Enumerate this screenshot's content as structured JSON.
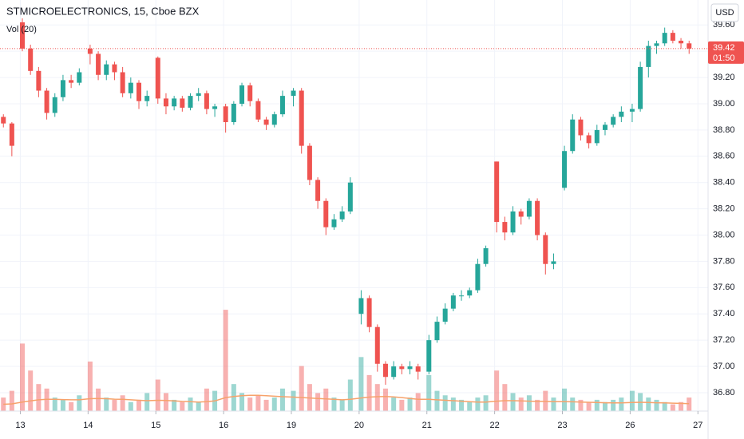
{
  "chart_data": {
    "type": "candlestick",
    "title": "STMICROELECTRONICS, 15, Cboe BZX",
    "indicator": "Vol (20)",
    "currency": "USD",
    "last_price": 39.42,
    "countdown": "01:50",
    "up_color": "#26a69a",
    "down_color": "#ef5350",
    "ma_color": "#f7a26b",
    "grid": true,
    "xlim": [
      -0.3,
      10.15
    ],
    "ylim": [
      36.66,
      39.79
    ],
    "volume_lim": [
      0,
      50000
    ],
    "yticks": [
      {
        "value": 36.8,
        "label": "36.80"
      },
      {
        "value": 37.0,
        "label": "37.00"
      },
      {
        "value": 37.2,
        "label": "37.20"
      },
      {
        "value": 37.4,
        "label": "37.40"
      },
      {
        "value": 37.6,
        "label": "37.60"
      },
      {
        "value": 37.8,
        "label": "37.80"
      },
      {
        "value": 38.0,
        "label": "38.00"
      },
      {
        "value": 38.2,
        "label": "38.20"
      },
      {
        "value": 38.4,
        "label": "38.40"
      },
      {
        "value": 38.6,
        "label": "38.60"
      },
      {
        "value": 38.8,
        "label": "38.80"
      },
      {
        "value": 39.0,
        "label": "39.00"
      },
      {
        "value": 39.2,
        "label": "39.20"
      },
      {
        "value": 39.4,
        "label": "39.40"
      },
      {
        "value": 39.6,
        "label": "39.60"
      }
    ],
    "xticks": [
      {
        "value": 0,
        "label": "13"
      },
      {
        "value": 1,
        "label": "14"
      },
      {
        "value": 2,
        "label": "15"
      },
      {
        "value": 3,
        "label": "16"
      },
      {
        "value": 4,
        "label": "19"
      },
      {
        "value": 5,
        "label": "20"
      },
      {
        "value": 6,
        "label": "21"
      },
      {
        "value": 7,
        "label": "22"
      },
      {
        "value": 8,
        "label": "23"
      },
      {
        "value": 9,
        "label": "26"
      },
      {
        "value": 10,
        "label": "27"
      }
    ],
    "x": [
      -0.25,
      -0.125,
      0.03,
      0.15,
      0.27,
      0.39,
      0.51,
      0.63,
      0.75,
      0.87,
      1.03,
      1.15,
      1.27,
      1.39,
      1.51,
      1.63,
      1.75,
      1.87,
      2.03,
      2.15,
      2.27,
      2.39,
      2.51,
      2.63,
      2.75,
      2.87,
      3.03,
      3.15,
      3.27,
      3.39,
      3.51,
      3.63,
      3.75,
      3.87,
      4.03,
      4.15,
      4.27,
      4.39,
      4.51,
      4.63,
      4.75,
      4.87,
      5.03,
      5.15,
      5.27,
      5.39,
      5.51,
      5.63,
      5.75,
      5.87,
      6.03,
      6.15,
      6.27,
      6.39,
      6.51,
      6.63,
      6.75,
      6.87,
      7.03,
      7.15,
      7.27,
      7.39,
      7.51,
      7.63,
      7.75,
      7.87,
      8.03,
      8.15,
      8.27,
      8.39,
      8.51,
      8.63,
      8.75,
      8.87,
      9.03,
      9.15,
      9.27,
      9.39,
      9.51,
      9.63,
      9.75,
      9.87
    ],
    "open": [
      38.9,
      38.85,
      39.62,
      39.42,
      39.25,
      39.1,
      38.93,
      39.05,
      39.18,
      39.16,
      39.42,
      39.38,
      39.22,
      39.3,
      39.24,
      39.08,
      39.16,
      39.02,
      39.35,
      39.04,
      38.98,
      39.04,
      38.97,
      39.06,
      39.08,
      38.96,
      38.98,
      38.86,
      39.0,
      39.14,
      39.02,
      38.88,
      38.84,
      38.92,
      39.06,
      39.1,
      38.68,
      38.42,
      38.26,
      38.06,
      38.12,
      38.18,
      37.4,
      37.52,
      37.3,
      37.02,
      36.92,
      37.0,
      36.98,
      37.0,
      36.96,
      37.2,
      37.34,
      37.44,
      37.54,
      37.54,
      37.58,
      37.78,
      38.56,
      38.1,
      38.02,
      38.18,
      38.14,
      38.26,
      38.0,
      37.78,
      38.36,
      38.64,
      38.88,
      38.76,
      38.7,
      38.8,
      38.84,
      38.9,
      38.94,
      38.96,
      39.28,
      39.44,
      39.46,
      39.54,
      39.48,
      39.46
    ],
    "high": [
      38.92,
      38.86,
      39.65,
      39.45,
      39.28,
      39.12,
      39.08,
      39.22,
      39.22,
      39.27,
      39.45,
      39.4,
      39.33,
      39.32,
      39.28,
      39.2,
      39.18,
      39.1,
      39.36,
      39.08,
      39.06,
      39.06,
      39.08,
      39.12,
      39.1,
      39.0,
      39.0,
      39.02,
      39.16,
      39.16,
      39.04,
      38.9,
      38.94,
      39.1,
      39.12,
      39.12,
      38.7,
      38.44,
      38.28,
      38.16,
      38.22,
      38.44,
      37.58,
      37.54,
      37.32,
      37.04,
      37.04,
      37.02,
      37.04,
      37.02,
      37.24,
      37.38,
      37.48,
      37.56,
      37.58,
      37.6,
      37.82,
      37.92,
      38.56,
      38.14,
      38.22,
      38.2,
      38.28,
      38.28,
      38.02,
      37.86,
      38.68,
      38.92,
      38.9,
      38.78,
      38.84,
      38.86,
      38.92,
      38.98,
      39.0,
      39.32,
      39.48,
      39.48,
      39.58,
      39.56,
      39.5,
      39.48
    ],
    "low": [
      38.82,
      38.6,
      39.4,
      39.22,
      39.05,
      38.88,
      38.9,
      39.02,
      39.12,
      39.14,
      39.3,
      39.18,
      39.18,
      39.18,
      39.05,
      39.04,
      38.96,
      38.98,
      39.0,
      38.92,
      38.95,
      38.94,
      38.95,
      39.02,
      38.92,
      38.9,
      38.78,
      38.84,
      38.98,
      38.98,
      38.86,
      38.8,
      38.82,
      38.9,
      38.98,
      38.62,
      38.38,
      38.2,
      38.0,
      38.04,
      38.1,
      38.16,
      37.32,
      37.26,
      36.96,
      36.86,
      36.9,
      36.94,
      36.94,
      36.9,
      36.94,
      37.18,
      37.32,
      37.42,
      37.5,
      37.52,
      37.56,
      37.76,
      38.02,
      37.96,
      38.0,
      38.08,
      38.12,
      37.96,
      37.7,
      37.74,
      38.34,
      38.62,
      38.72,
      38.66,
      38.68,
      38.76,
      38.82,
      38.86,
      38.86,
      38.94,
      39.2,
      39.38,
      39.44,
      39.46,
      39.42,
      39.38
    ],
    "close": [
      38.85,
      38.68,
      39.42,
      39.25,
      39.1,
      38.93,
      39.05,
      39.18,
      39.16,
      39.24,
      39.38,
      39.22,
      39.3,
      39.24,
      39.08,
      39.16,
      39.02,
      39.06,
      39.04,
      38.98,
      39.04,
      38.97,
      39.06,
      39.08,
      38.96,
      38.98,
      38.86,
      39.0,
      39.14,
      39.02,
      38.88,
      38.84,
      38.92,
      39.06,
      39.1,
      38.68,
      38.42,
      38.26,
      38.06,
      38.12,
      38.18,
      38.4,
      37.52,
      37.3,
      37.02,
      36.92,
      37.0,
      36.98,
      37.0,
      36.96,
      37.2,
      37.34,
      37.44,
      37.54,
      37.54,
      37.58,
      37.78,
      37.9,
      38.1,
      38.02,
      38.18,
      38.14,
      38.26,
      38.0,
      37.78,
      37.8,
      38.64,
      38.88,
      38.76,
      38.7,
      38.8,
      38.84,
      38.9,
      38.94,
      38.96,
      39.28,
      39.44,
      39.46,
      39.54,
      39.48,
      39.46,
      39.42
    ],
    "volume": [
      6000,
      9000,
      30000,
      18000,
      12000,
      10000,
      6000,
      5000,
      4000,
      7000,
      22000,
      10000,
      6000,
      5000,
      7000,
      4000,
      5000,
      8000,
      14000,
      8000,
      5000,
      4000,
      6000,
      4000,
      10000,
      9000,
      45000,
      12000,
      8000,
      6000,
      7000,
      5000,
      6000,
      10000,
      9000,
      20000,
      12000,
      8000,
      10000,
      6000,
      5000,
      14000,
      24000,
      16000,
      12000,
      10000,
      6000,
      5000,
      6000,
      8000,
      16000,
      9000,
      7000,
      6000,
      5000,
      4000,
      6000,
      7000,
      18000,
      12000,
      8000,
      6000,
      7000,
      5000,
      9000,
      6000,
      10000,
      6000,
      5000,
      4000,
      5000,
      4000,
      5000,
      6000,
      9000,
      8000,
      6000,
      5000,
      4000,
      3000,
      4000,
      6000
    ],
    "volume_ma": [
      3000,
      3200,
      4000,
      4500,
      5000,
      5200,
      5200,
      5100,
      5000,
      5000,
      5500,
      5600,
      5500,
      5300,
      5200,
      5000,
      4800,
      4600,
      4800,
      4700,
      4500,
      4300,
      4200,
      4000,
      4200,
      4500,
      6000,
      6500,
      6800,
      7000,
      7000,
      6800,
      6600,
      6400,
      6200,
      6000,
      5800,
      5600,
      5400,
      5200,
      5000,
      5200,
      5800,
      6200,
      6400,
      6500,
      6300,
      6000,
      5600,
      5200,
      5200,
      5000,
      4800,
      4600,
      4400,
      4200,
      4000,
      4000,
      4400,
      4600,
      4600,
      4500,
      4400,
      4300,
      4300,
      4200,
      4200,
      4100,
      4000,
      3900,
      3800,
      3700,
      3600,
      3600,
      3800,
      3900,
      3800,
      3700,
      3600,
      3500,
      3400,
      3300
    ]
  }
}
